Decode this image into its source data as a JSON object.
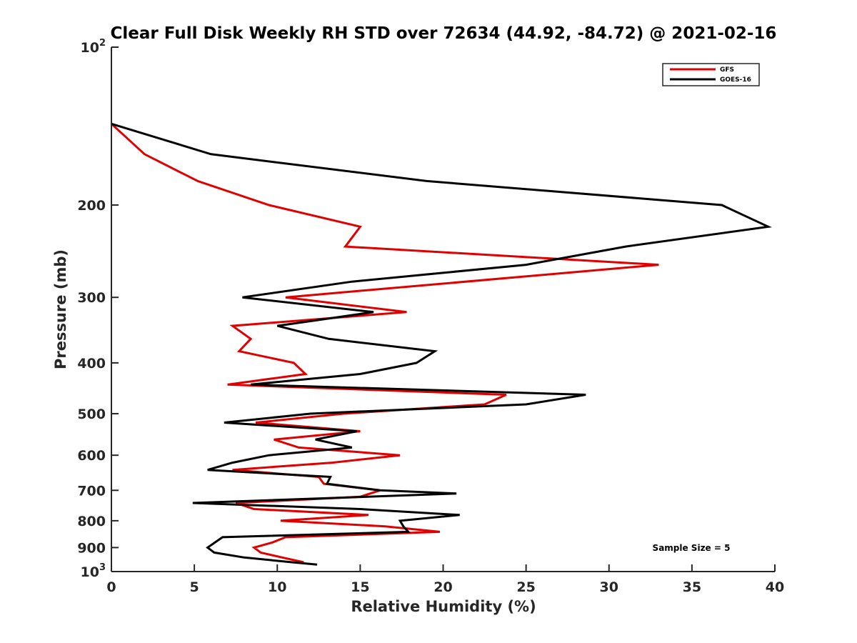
{
  "chart_data": {
    "type": "line",
    "title": "Clear Full Disk Weekly RH STD over 72634 (44.92, -84.72) @ 2021-02-16",
    "xlabel": "Relative Humidity (%)",
    "ylabel": "Pressure (mb)",
    "xlim": [
      0,
      40
    ],
    "ylim": [
      100,
      1000
    ],
    "yscale": "log",
    "yreversed": true,
    "grid": false,
    "x_ticks": [
      0,
      5,
      10,
      15,
      20,
      25,
      30,
      35,
      40
    ],
    "x_tick_labels": [
      "0",
      "5",
      "10",
      "15",
      "20",
      "25",
      "30",
      "35",
      "40"
    ],
    "y_ticks": [
      100,
      200,
      300,
      400,
      500,
      600,
      700,
      800,
      900,
      1000
    ],
    "y_tick_labels": [
      {
        "base": "10",
        "exp": "2"
      },
      {
        "text": "200"
      },
      {
        "text": "300"
      },
      {
        "text": "400"
      },
      {
        "text": "500"
      },
      {
        "text": "600"
      },
      {
        "text": "700"
      },
      {
        "text": "800"
      },
      {
        "text": "900"
      },
      {
        "base": "10",
        "exp": "3"
      }
    ],
    "legend": {
      "position": "top-right",
      "entries": [
        "GFS",
        "GOES-16"
      ]
    },
    "annotation": "Sample Size = 5",
    "series": [
      {
        "name": "GFS",
        "color": "#e00000",
        "points": [
          [
            0.0,
            140
          ],
          [
            2.0,
            160
          ],
          [
            5.2,
            180
          ],
          [
            9.5,
            200
          ],
          [
            15.0,
            220
          ],
          [
            14.1,
            240
          ],
          [
            33.0,
            260
          ],
          [
            10.5,
            300
          ],
          [
            17.8,
            320
          ],
          [
            7.3,
            340
          ],
          [
            8.4,
            360
          ],
          [
            7.7,
            380
          ],
          [
            11.0,
            400
          ],
          [
            11.7,
            420
          ],
          [
            7.0,
            440
          ],
          [
            23.8,
            460
          ],
          [
            22.5,
            480
          ],
          [
            14.0,
            500
          ],
          [
            8.7,
            520
          ],
          [
            15.0,
            540
          ],
          [
            9.8,
            560
          ],
          [
            11.3,
            580
          ],
          [
            17.4,
            600
          ],
          [
            13.3,
            620
          ],
          [
            7.3,
            640
          ],
          [
            12.5,
            660
          ],
          [
            12.8,
            680
          ],
          [
            16.2,
            700
          ],
          [
            15.0,
            720
          ],
          [
            7.5,
            740
          ],
          [
            8.6,
            760
          ],
          [
            15.5,
            780
          ],
          [
            10.2,
            800
          ],
          [
            16.5,
            820
          ],
          [
            19.8,
            840
          ],
          [
            10.5,
            860
          ],
          [
            9.7,
            880
          ],
          [
            8.6,
            900
          ],
          [
            9.0,
            920
          ],
          [
            10.3,
            940
          ],
          [
            11.6,
            960
          ]
        ]
      },
      {
        "name": "GOES-16",
        "color": "#000000",
        "points": [
          [
            0.0,
            140
          ],
          [
            6.0,
            160
          ],
          [
            19.0,
            180
          ],
          [
            36.8,
            200
          ],
          [
            39.6,
            220
          ],
          [
            31.0,
            240
          ],
          [
            25.0,
            260
          ],
          [
            14.5,
            280
          ],
          [
            7.9,
            300
          ],
          [
            15.8,
            320
          ],
          [
            10.0,
            340
          ],
          [
            13.1,
            360
          ],
          [
            19.5,
            380
          ],
          [
            18.4,
            400
          ],
          [
            15.0,
            420
          ],
          [
            8.4,
            440
          ],
          [
            28.6,
            460
          ],
          [
            25.0,
            480
          ],
          [
            12.0,
            500
          ],
          [
            6.8,
            520
          ],
          [
            14.8,
            540
          ],
          [
            12.3,
            560
          ],
          [
            14.5,
            580
          ],
          [
            9.5,
            600
          ],
          [
            7.3,
            620
          ],
          [
            5.8,
            640
          ],
          [
            13.2,
            660
          ],
          [
            13.0,
            680
          ],
          [
            16.2,
            700
          ],
          [
            20.8,
            710
          ],
          [
            4.9,
            740
          ],
          [
            15.0,
            760
          ],
          [
            21.0,
            780
          ],
          [
            17.4,
            800
          ],
          [
            17.6,
            820
          ],
          [
            17.9,
            840
          ],
          [
            6.7,
            860
          ],
          [
            5.8,
            900
          ],
          [
            6.2,
            920
          ],
          [
            8.0,
            940
          ],
          [
            10.9,
            960
          ],
          [
            12.4,
            970
          ]
        ]
      }
    ]
  }
}
